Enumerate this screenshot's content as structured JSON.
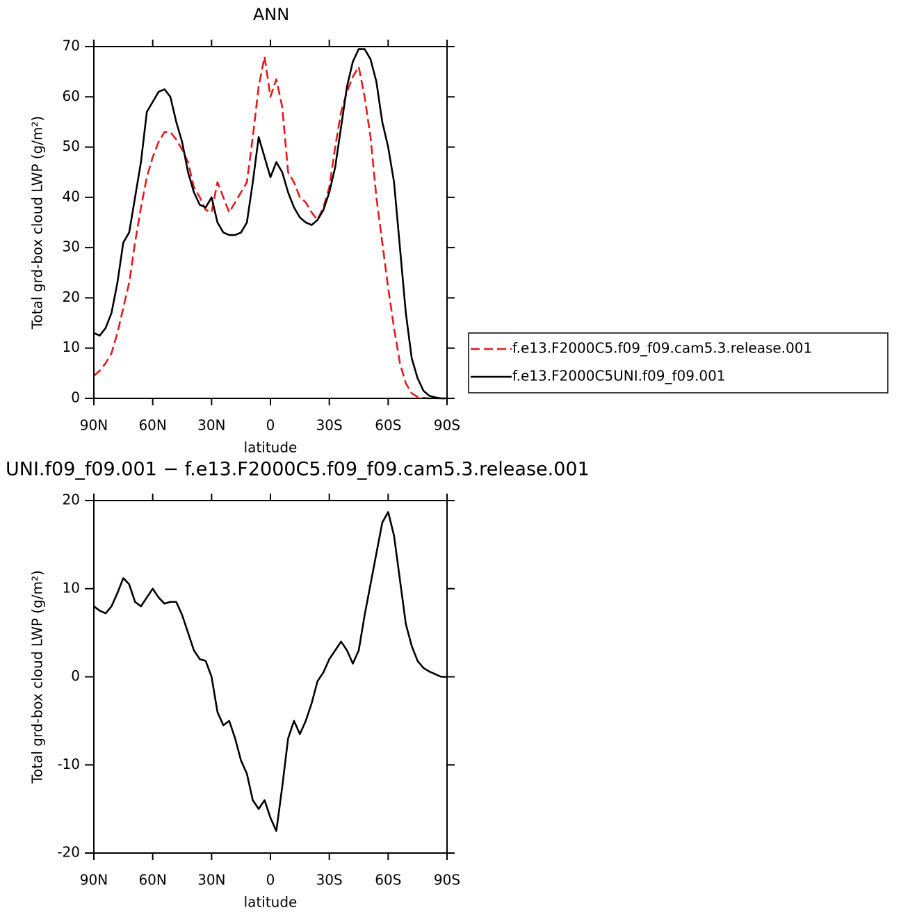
{
  "chart_data": [
    {
      "type": "line",
      "title": "ANN",
      "xlabel": "latitude",
      "ylabel": "Total grd-box cloud LWP (g/m²)",
      "x": [
        90,
        87,
        84,
        81,
        78,
        75,
        72,
        69,
        66,
        63,
        60,
        57,
        54,
        51,
        48,
        45,
        42,
        39,
        36,
        33,
        30,
        27,
        24,
        21,
        18,
        15,
        12,
        9,
        6,
        3,
        0,
        -3,
        -6,
        -9,
        -12,
        -15,
        -18,
        -21,
        -24,
        -27,
        -30,
        -33,
        -36,
        -39,
        -42,
        -45,
        -48,
        -51,
        -54,
        -57,
        -60,
        -63,
        -66,
        -69,
        -72,
        -75,
        -78,
        -81,
        -84,
        -87,
        -90
      ],
      "xlim": [
        90,
        -90
      ],
      "xticks": [
        {
          "value": 90,
          "label": "90N"
        },
        {
          "value": 60,
          "label": "60N"
        },
        {
          "value": 30,
          "label": "30N"
        },
        0,
        {
          "value": -30,
          "label": "30S"
        },
        {
          "value": -60,
          "label": "60S"
        },
        {
          "value": -90,
          "label": "90S"
        }
      ],
      "ylim": [
        0,
        70
      ],
      "yticks": [
        0,
        10,
        20,
        30,
        40,
        50,
        60,
        70
      ],
      "legend": "right",
      "series": [
        {
          "name": "f.e13.F2000C5.f09_f09.cam5.3.release.001",
          "color": "#e41a1c",
          "dashed": true,
          "values": [
            4.5,
            5.5,
            7,
            9,
            13,
            18,
            23,
            31,
            38,
            44,
            48,
            51,
            53,
            53,
            51.5,
            49.5,
            47,
            42,
            40,
            37.5,
            37,
            43,
            40,
            37,
            39,
            41,
            43,
            52,
            62,
            68,
            60,
            63.5,
            58,
            45,
            43,
            40,
            39,
            37,
            35.5,
            38,
            42,
            50,
            57,
            61,
            64,
            66,
            60,
            52,
            40,
            31,
            22,
            14,
            7,
            3,
            1,
            0.3,
            0.1,
            0,
            0,
            0,
            0
          ]
        },
        {
          "name": "f.e13.F2000C5UNI.f09_f09.001",
          "color": "#000000",
          "dashed": false,
          "values": [
            13,
            12.5,
            14,
            17,
            23,
            31,
            33,
            40,
            47,
            57,
            59,
            61,
            61.5,
            60,
            55,
            51,
            45,
            41,
            38.5,
            38,
            40,
            35,
            33,
            32.5,
            32.5,
            33,
            35,
            43,
            52,
            48,
            44,
            47,
            45,
            41,
            38,
            36,
            35,
            34.5,
            35.5,
            37.5,
            41,
            46,
            54,
            62,
            67,
            69.5,
            69.5,
            67.5,
            63,
            55,
            50,
            43,
            30,
            17,
            8,
            4,
            1.5,
            0.5,
            0.2,
            0,
            0
          ]
        }
      ]
    },
    {
      "type": "line",
      "title": "UNI.f09_f09.001 − f.e13.F2000C5.f09_f09.cam5.3.release.001",
      "xlabel": "latitude",
      "ylabel": "Total grd-box cloud LWP (g/m²)",
      "x": [
        90,
        87,
        84,
        81,
        78,
        75,
        72,
        69,
        66,
        63,
        60,
        57,
        54,
        51,
        48,
        45,
        42,
        39,
        36,
        33,
        30,
        27,
        24,
        21,
        18,
        15,
        12,
        9,
        6,
        3,
        0,
        -3,
        -6,
        -9,
        -12,
        -15,
        -18,
        -21,
        -24,
        -27,
        -30,
        -33,
        -36,
        -39,
        -42,
        -45,
        -48,
        -51,
        -54,
        -57,
        -60,
        -63,
        -66,
        -69,
        -72,
        -75,
        -78,
        -81,
        -84,
        -87,
        -90
      ],
      "xlim": [
        90,
        -90
      ],
      "xticks": [
        {
          "value": 90,
          "label": "90N"
        },
        {
          "value": 60,
          "label": "60N"
        },
        {
          "value": 30,
          "label": "30N"
        },
        0,
        {
          "value": -30,
          "label": "30S"
        },
        {
          "value": -60,
          "label": "60S"
        },
        {
          "value": -90,
          "label": "90S"
        }
      ],
      "ylim": [
        -20,
        20
      ],
      "yticks": [
        -20,
        -10,
        0,
        10,
        20
      ],
      "series": [
        {
          "color": "#000000",
          "dashed": false,
          "values": [
            8,
            7.5,
            7.2,
            8,
            9.5,
            11.2,
            10.5,
            8.5,
            8,
            9,
            10,
            9,
            8.3,
            8.5,
            8.5,
            7,
            5,
            3,
            2,
            1.8,
            0,
            -4,
            -5.5,
            -5,
            -7,
            -9.5,
            -11,
            -14,
            -15,
            -14,
            -16,
            -17.5,
            -12.5,
            -7,
            -5,
            -6.5,
            -5,
            -3,
            -0.5,
            0.5,
            2,
            3,
            4,
            3,
            1.5,
            3,
            7,
            10.5,
            14,
            17.5,
            18.7,
            16,
            11,
            6,
            3.5,
            1.8,
            1,
            0.6,
            0.3,
            0,
            0
          ]
        }
      ]
    }
  ]
}
